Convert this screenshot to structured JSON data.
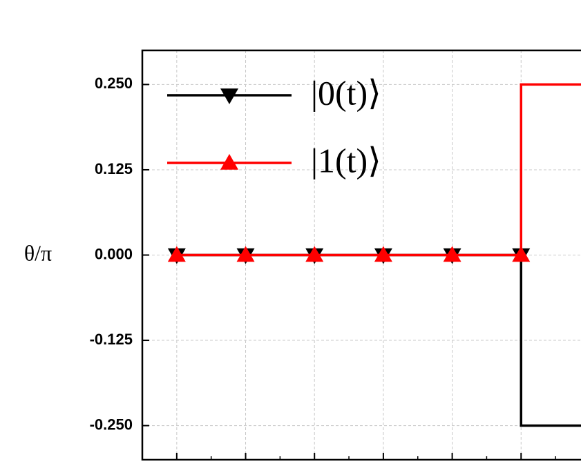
{
  "chart_data": {
    "type": "line",
    "step": "pre",
    "y_label": "θ/π",
    "x": [
      1,
      2,
      3,
      4,
      5,
      6,
      7
    ],
    "series": [
      {
        "name": "|0(t)⟩",
        "color": "#000000",
        "marker": "triangle-down",
        "values": [
          0,
          0,
          0,
          0,
          0,
          0,
          -0.25
        ]
      },
      {
        "name": "|1(t)⟩",
        "color": "#ff0000",
        "marker": "triangle-up",
        "values": [
          0,
          0,
          0,
          0,
          0,
          0,
          0.25
        ]
      }
    ],
    "xlim": [
      0.5,
      6.87
    ],
    "xticks": [
      1,
      2,
      3,
      4,
      5,
      6
    ],
    "ylim": [
      -0.3,
      0.3
    ],
    "yticks": [
      {
        "value": -0.25,
        "label": "-0.250"
      },
      {
        "value": -0.125,
        "label": "-0.125"
      },
      {
        "value": 0,
        "label": "0.000"
      },
      {
        "value": 0.125,
        "label": "0.125"
      },
      {
        "value": 0.25,
        "label": "0.250"
      }
    ],
    "grid": true,
    "legend": "top-left"
  }
}
